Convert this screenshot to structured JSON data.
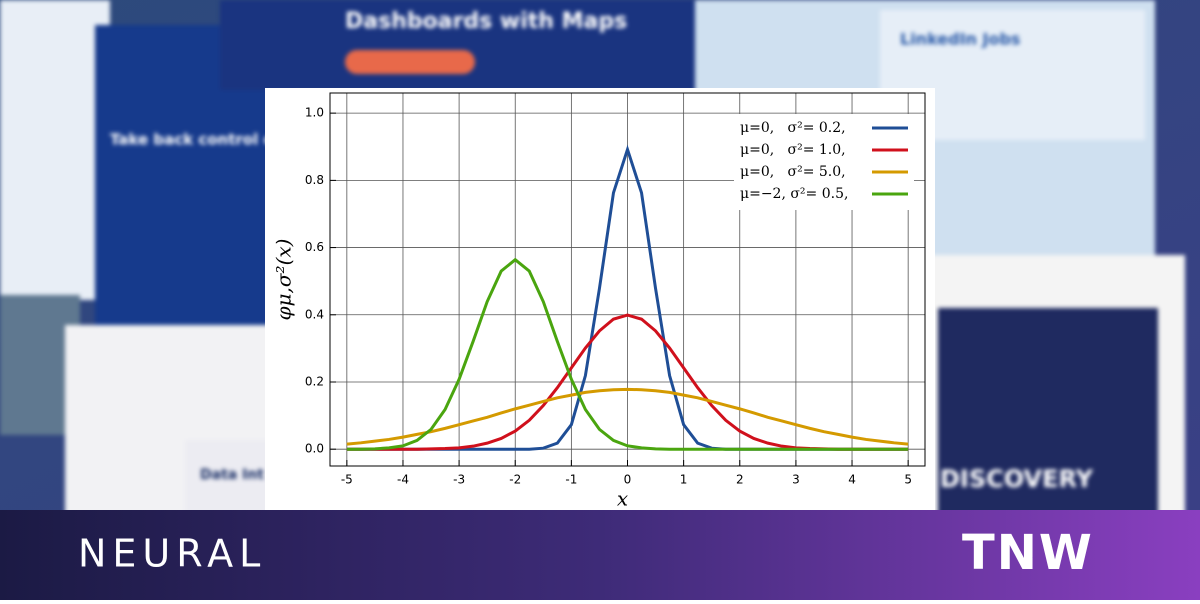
{
  "chart_data": {
    "type": "line",
    "ylabel": "φμ,σ²(x)",
    "xlabel": "x",
    "x": [
      -5,
      -4.75,
      -4.5,
      -4.25,
      -4,
      -3.75,
      -3.5,
      -3.25,
      -3,
      -2.75,
      -2.5,
      -2.25,
      -2,
      -1.75,
      -1.5,
      -1.25,
      -1,
      -0.75,
      -0.5,
      -0.25,
      0,
      0.25,
      0.5,
      0.75,
      1,
      1.25,
      1.5,
      1.75,
      2,
      2.25,
      2.5,
      2.75,
      3,
      3.25,
      3.5,
      3.75,
      4,
      4.25,
      4.5,
      4.75,
      5
    ],
    "series": [
      {
        "name": "μ=0,   σ²= 0.2,",
        "color": "#1f4e96",
        "values": [
          0,
          0,
          0,
          0,
          0,
          0,
          0,
          0,
          0,
          0,
          0,
          0,
          0,
          0,
          0.003,
          0.018,
          0.073,
          0.219,
          0.478,
          0.763,
          0.892,
          0.763,
          0.478,
          0.219,
          0.073,
          0.018,
          0.003,
          0,
          0,
          0,
          0,
          0,
          0,
          0,
          0,
          0,
          0,
          0,
          0,
          0,
          0
        ]
      },
      {
        "name": "μ=0,   σ²= 1.0,",
        "color": "#d0101c",
        "values": [
          0,
          0,
          0,
          0,
          0,
          0,
          0.001,
          0.002,
          0.004,
          0.009,
          0.018,
          0.032,
          0.054,
          0.086,
          0.13,
          0.183,
          0.242,
          0.301,
          0.352,
          0.387,
          0.399,
          0.387,
          0.352,
          0.301,
          0.242,
          0.183,
          0.13,
          0.086,
          0.054,
          0.032,
          0.018,
          0.009,
          0.004,
          0.002,
          0.001,
          0,
          0,
          0,
          0,
          0,
          0
        ]
      },
      {
        "name": "μ=0,   σ²= 5.0,",
        "color": "#d49a00",
        "values": [
          0.015,
          0.019,
          0.024,
          0.029,
          0.036,
          0.044,
          0.052,
          0.062,
          0.073,
          0.084,
          0.095,
          0.108,
          0.12,
          0.131,
          0.142,
          0.153,
          0.161,
          0.169,
          0.174,
          0.177,
          0.178,
          0.177,
          0.174,
          0.169,
          0.161,
          0.153,
          0.142,
          0.131,
          0.12,
          0.108,
          0.095,
          0.084,
          0.073,
          0.062,
          0.052,
          0.044,
          0.036,
          0.029,
          0.024,
          0.019,
          0.015
        ]
      },
      {
        "name": "μ=−2, σ²= 0.5,",
        "color": "#4aa50f",
        "values": [
          0,
          0,
          0.001,
          0.004,
          0.01,
          0.026,
          0.059,
          0.118,
          0.208,
          0.321,
          0.439,
          0.53,
          0.564,
          0.53,
          0.439,
          0.321,
          0.208,
          0.118,
          0.059,
          0.026,
          0.01,
          0.004,
          0.001,
          0,
          0,
          0,
          0,
          0,
          0,
          0,
          0,
          0,
          0,
          0,
          0,
          0,
          0,
          0,
          0,
          0,
          0
        ]
      }
    ],
    "xlim": [
      -5.3,
      5.3
    ],
    "ylim": [
      -0.05,
      1.06
    ],
    "xticks": [
      -5,
      -4,
      -3,
      -2,
      -1,
      0,
      1,
      2,
      3,
      4,
      5
    ],
    "yticks": [
      {
        "value": 0,
        "label": "0.0"
      },
      0.2,
      0.4,
      0.6,
      0.8,
      {
        "value": 1,
        "label": "1.0"
      }
    ],
    "grid": true,
    "legend": "upper right"
  },
  "background": {
    "ad1": "Dashboards with Maps",
    "ad2": "Take back control of your media investment",
    "ad3": "LinkedIn Jobs",
    "ad4": "DISCOVERY",
    "ad5": "Data Int Holding"
  },
  "branding": {
    "left": "NEURAL",
    "right": "TNW"
  }
}
